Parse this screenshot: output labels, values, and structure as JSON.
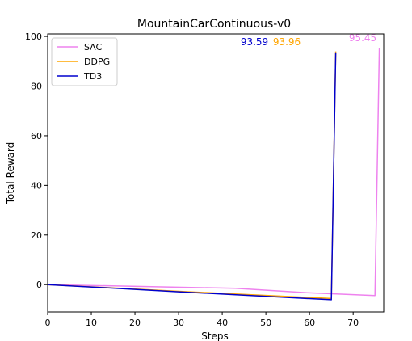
{
  "chart_data": {
    "type": "line",
    "title": "MountainCarContinuous-v0",
    "xlabel": "Steps",
    "ylabel": "Total Reward",
    "xlim": [
      0,
      77
    ],
    "ylim": [
      -11,
      101
    ],
    "xticks": [
      0,
      10,
      20,
      30,
      40,
      50,
      60,
      70
    ],
    "yticks": [
      0,
      20,
      40,
      60,
      80,
      100
    ],
    "legend_position": "top-left",
    "series": [
      {
        "name": "SAC",
        "color": "#ee82ee",
        "points": [
          [
            0,
            0
          ],
          [
            43,
            -1.5
          ],
          [
            60,
            -3.3
          ],
          [
            75,
            -4.4
          ],
          [
            76,
            95.45
          ]
        ],
        "final_label": "95.45"
      },
      {
        "name": "DDPG",
        "color": "#ffa500",
        "points": [
          [
            0,
            0
          ],
          [
            30,
            -2.7
          ],
          [
            65,
            -5.6
          ],
          [
            66,
            93.96
          ]
        ],
        "final_label": "93.96"
      },
      {
        "name": "TD3",
        "color": "#0000cd",
        "points": [
          [
            0,
            0
          ],
          [
            30,
            -2.9
          ],
          [
            65,
            -6.1
          ],
          [
            66,
            93.59
          ]
        ],
        "final_label": "93.59"
      }
    ]
  }
}
